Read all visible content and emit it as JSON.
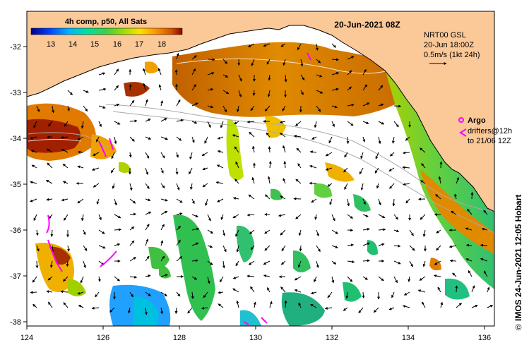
{
  "title": "20-Jun-2021 08Z",
  "colorbar": {
    "title": "4h comp, p50, All Sats",
    "tick_labels": [
      "13",
      "14",
      "15",
      "16",
      "17",
      "18"
    ],
    "colors": [
      "#00008c",
      "#0040ff",
      "#00b4ff",
      "#00e0a0",
      "#40d040",
      "#a0e000",
      "#ffe000",
      "#ff9000",
      "#d05000",
      "#8b0000"
    ]
  },
  "legend_currents": {
    "line1": "NRT00 GSL",
    "line2": "20-Jun 18:00Z",
    "line3": "0.5m/s (1kt 24h)"
  },
  "legend_argo": {
    "argo_label": "Argo",
    "drifters_line1": "drifters@12h",
    "drifters_line2": "to 21/06 12Z"
  },
  "axes": {
    "x_labels": [
      "124",
      "126",
      "128",
      "130",
      "132",
      "134",
      "136"
    ],
    "y_labels": [
      "-32",
      "-33",
      "-34",
      "-35",
      "-36",
      "-37",
      "-38"
    ]
  },
  "credit": "IMOS 24-Jun-2021 12:05 Hobart",
  "copyright": "©",
  "colors": {
    "land": "#fbc898",
    "coast": "#000000",
    "argo": "#ff00ff"
  }
}
